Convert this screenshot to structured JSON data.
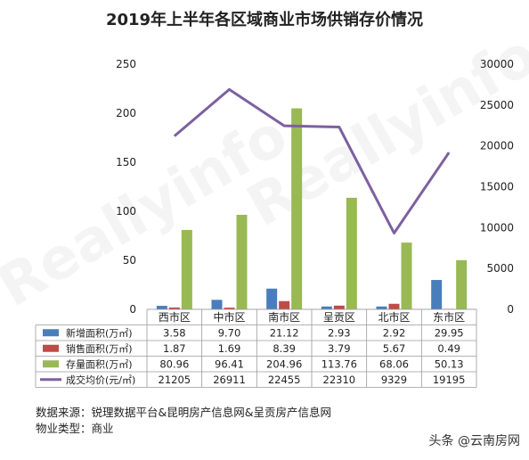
{
  "title": "2019年上半年各区域商业市场供销存价情况",
  "chart_data": {
    "type": "bar",
    "title": "2019年上半年各区域商业市场供销存价情况",
    "categories": [
      "西市区",
      "中市区",
      "南市区",
      "呈贡区",
      "北市区",
      "东市区"
    ],
    "ylim_left": [
      0,
      250
    ],
    "yticks_left": [
      "0",
      "50",
      "100",
      "150",
      "200",
      "250"
    ],
    "ylim_right": [
      0,
      30000
    ],
    "yticks_right": [
      "0",
      "5000",
      "10000",
      "15000",
      "20000",
      "25000",
      "30000"
    ],
    "grid": false,
    "legend": "table-below",
    "series": [
      {
        "name": "新增面积(万㎡)",
        "type": "bar",
        "axis": "left",
        "color": "#4a7ebb",
        "values": [
          3.58,
          9.7,
          21.12,
          2.93,
          2.92,
          29.95
        ],
        "labels": [
          "3.58",
          "9.70",
          "21.12",
          "2.93",
          "2.92",
          "29.95"
        ]
      },
      {
        "name": "销售面积(万㎡)",
        "type": "bar",
        "axis": "left",
        "color": "#be4b48",
        "values": [
          1.87,
          1.69,
          8.39,
          3.79,
          5.67,
          0.49
        ],
        "labels": [
          "1.87",
          "1.69",
          "8.39",
          "3.79",
          "5.67",
          "0.49"
        ]
      },
      {
        "name": "存量面积(万㎡)",
        "type": "bar",
        "axis": "left",
        "color": "#98b954",
        "values": [
          80.96,
          96.41,
          204.96,
          113.76,
          68.06,
          50.13
        ],
        "labels": [
          "80.96",
          "96.41",
          "204.96",
          "113.76",
          "68.06",
          "50.13"
        ]
      },
      {
        "name": "成交均价(元/㎡)",
        "type": "line",
        "axis": "right",
        "color": "#7d60a0",
        "values": [
          21205,
          26911,
          22455,
          22310,
          9329,
          19195
        ],
        "labels": [
          "21205",
          "26911",
          "22455",
          "22310",
          "9329",
          "19195"
        ]
      }
    ]
  },
  "footer": {
    "source": "数据来源：锐理数据平台&昆明房产信息网&呈贡房产信息网",
    "property_type": "物业类型：商业"
  },
  "watermark": {
    "brand": "Reallyinfo",
    "brand_cn": "锐理数据",
    "credit": "头条 @云南房网"
  }
}
